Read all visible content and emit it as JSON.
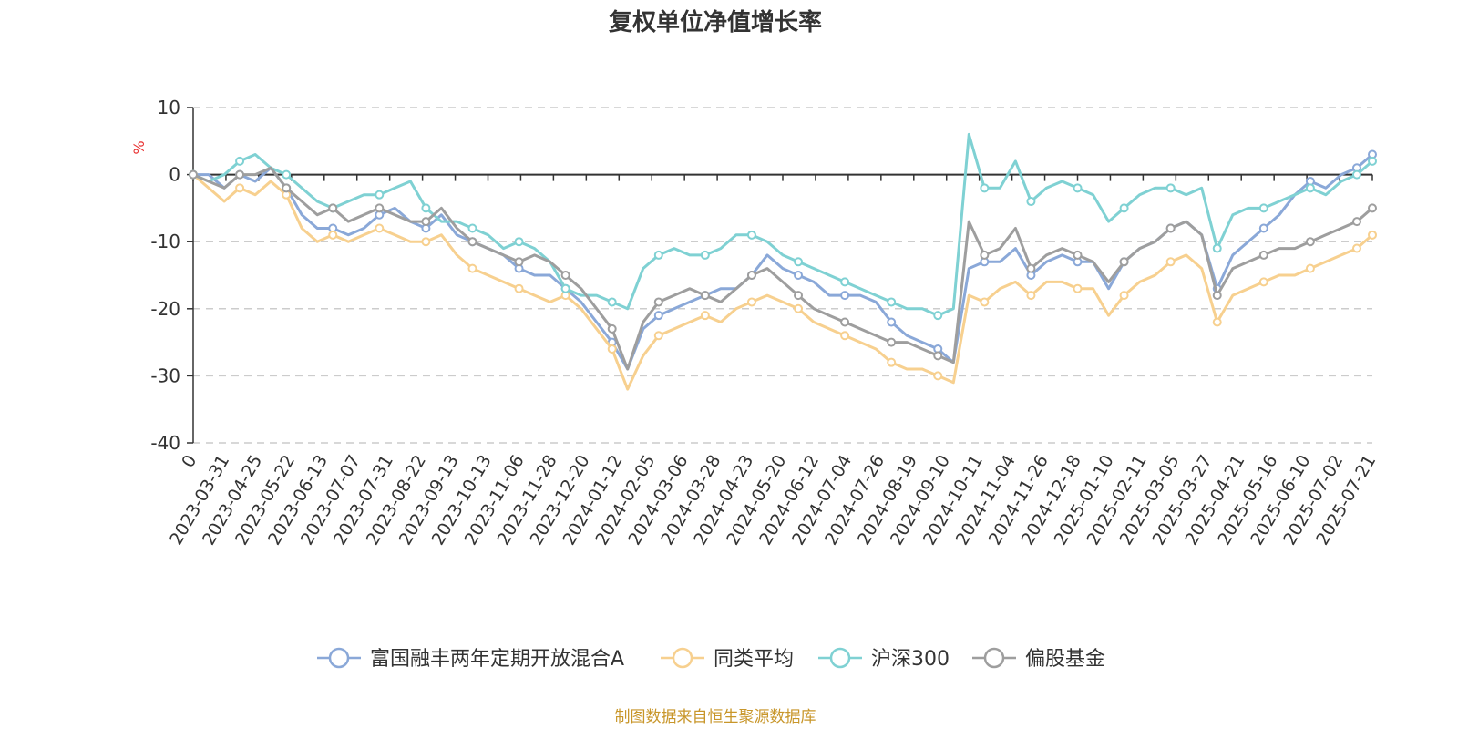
{
  "chart_data": {
    "type": "line",
    "title": "复权单位净值增长率",
    "y_unit": "%",
    "ylim": [
      -40,
      10
    ],
    "y_ticks": [
      10,
      0,
      -10,
      -20,
      -30,
      -40
    ],
    "grid": "horizontal dashed",
    "legend_position": "bottom",
    "x_labels": [
      "0",
      "2023-03-31",
      "2023-04-25",
      "2023-05-22",
      "2023-06-13",
      "2023-07-07",
      "2023-07-31",
      "2023-08-22",
      "2023-09-13",
      "2023-10-13",
      "2023-11-06",
      "2023-11-28",
      "2023-12-20",
      "2024-01-12",
      "2024-02-05",
      "2024-03-06",
      "2024-03-28",
      "2024-04-23",
      "2024-05-20",
      "2024-06-12",
      "2024-07-04",
      "2024-07-26",
      "2024-08-19",
      "2024-09-10",
      "2024-10-11",
      "2024-11-04",
      "2024-11-26",
      "2024-12-18",
      "2025-01-10",
      "2025-02-11",
      "2025-03-05",
      "2025-03-27",
      "2025-04-21",
      "2025-05-16",
      "2025-06-10",
      "2025-07-02",
      "2025-07-21"
    ],
    "series": [
      {
        "name": "富国融丰两年定期开放混合A",
        "color": "#8aa8d8",
        "values": [
          0,
          0,
          -2,
          0,
          -1,
          1,
          -2,
          -6,
          -8,
          -8,
          -9,
          -8,
          -6,
          -5,
          -7,
          -8,
          -6,
          -9,
          -10,
          -11,
          -12,
          -14,
          -15,
          -15,
          -17,
          -19,
          -22,
          -25,
          -29,
          -23,
          -21,
          -20,
          -19,
          -18,
          -17,
          -17,
          -15,
          -12,
          -14,
          -15,
          -16,
          -18,
          -18,
          -18,
          -19,
          -22,
          -24,
          -25,
          -26,
          -28,
          -14,
          -13,
          -13,
          -11,
          -15,
          -13,
          -12,
          -13,
          -13,
          -17,
          -13,
          -11,
          -10,
          -8,
          -7,
          -9,
          -17,
          -12,
          -10,
          -8,
          -6,
          -3,
          -1,
          -2,
          0,
          1,
          3
        ]
      },
      {
        "name": "同类平均",
        "color": "#f7d08f",
        "values": [
          0,
          -2,
          -4,
          -2,
          -3,
          -1,
          -3,
          -8,
          -10,
          -9,
          -10,
          -9,
          -8,
          -9,
          -10,
          -10,
          -9,
          -12,
          -14,
          -15,
          -16,
          -17,
          -18,
          -19,
          -18,
          -20,
          -23,
          -26,
          -32,
          -27,
          -24,
          -23,
          -22,
          -21,
          -22,
          -20,
          -19,
          -18,
          -19,
          -20,
          -22,
          -23,
          -24,
          -25,
          -26,
          -28,
          -29,
          -29,
          -30,
          -31,
          -18,
          -19,
          -17,
          -16,
          -18,
          -16,
          -16,
          -17,
          -17,
          -21,
          -18,
          -16,
          -15,
          -13,
          -12,
          -14,
          -22,
          -18,
          -17,
          -16,
          -15,
          -15,
          -14,
          -13,
          -12,
          -11,
          -9
        ]
      },
      {
        "name": "沪深300",
        "color": "#7fd1d3",
        "values": [
          0,
          -1,
          0,
          2,
          3,
          1,
          0,
          -2,
          -4,
          -5,
          -4,
          -3,
          -3,
          -2,
          -1,
          -5,
          -7,
          -7,
          -8,
          -9,
          -11,
          -10,
          -11,
          -13,
          -17,
          -18,
          -18,
          -19,
          -20,
          -14,
          -12,
          -11,
          -12,
          -12,
          -11,
          -9,
          -9,
          -10,
          -12,
          -13,
          -14,
          -15,
          -16,
          -17,
          -18,
          -19,
          -20,
          -20,
          -21,
          -20,
          6,
          -2,
          -2,
          2,
          -4,
          -2,
          -1,
          -2,
          -3,
          -7,
          -5,
          -3,
          -2,
          -2,
          -3,
          -2,
          -11,
          -6,
          -5,
          -5,
          -4,
          -3,
          -2,
          -3,
          -1,
          0,
          2
        ]
      },
      {
        "name": "偏股基金",
        "color": "#9e9e9e",
        "values": [
          0,
          -1,
          -2,
          0,
          0,
          1,
          -2,
          -4,
          -6,
          -5,
          -7,
          -6,
          -5,
          -6,
          -7,
          -7,
          -5,
          -8,
          -10,
          -11,
          -12,
          -13,
          -12,
          -13,
          -15,
          -17,
          -20,
          -23,
          -29,
          -22,
          -19,
          -18,
          -17,
          -18,
          -19,
          -17,
          -15,
          -14,
          -16,
          -18,
          -20,
          -21,
          -22,
          -23,
          -24,
          -25,
          -25,
          -26,
          -27,
          -28,
          -7,
          -12,
          -11,
          -8,
          -14,
          -12,
          -11,
          -12,
          -13,
          -16,
          -13,
          -11,
          -10,
          -8,
          -7,
          -9,
          -18,
          -14,
          -13,
          -12,
          -11,
          -11,
          -10,
          -9,
          -8,
          -7,
          -5
        ]
      }
    ]
  },
  "source": "制图数据来自恒生聚源数据库"
}
